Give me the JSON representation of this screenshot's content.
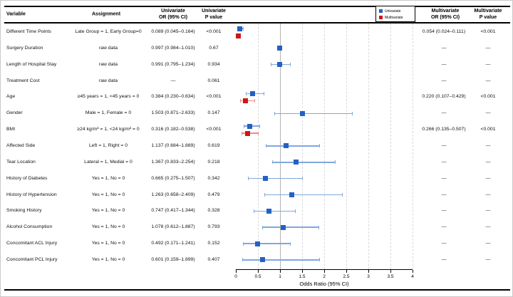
{
  "header": {
    "variable": "Variable",
    "assignment": "Assignment",
    "univariate_or": "Univariate\nOR (95% CI)",
    "univariate_p": "Univariate\nP value",
    "multivariate_or": "Multivariate\nOR (95% CI)",
    "multivariate_p": "Multivariate\nP value"
  },
  "legend": {
    "univariate_label": "Univariate",
    "multivariate_label": "Multivariate"
  },
  "colors": {
    "univariate_marker": "#2560c4",
    "univariate_bar": "#7fa8df",
    "multivariate_marker": "#cf1717",
    "multivariate_bar": "#e98c8c",
    "gridline": "#d9d9d9",
    "refline": "#b4b4b4"
  },
  "rows": [
    {
      "variable": "Different Time Points",
      "assignment": "Late Group = 1, Early Group=0",
      "uni_or": "0.089 (0.045–0.164)",
      "uni_p": "<0.001",
      "multi_or": "0.054 (0.024–0.111)",
      "multi_p": "<0.001"
    },
    {
      "variable": "Surgery Duration",
      "assignment": "raw data",
      "uni_or": "0.997 (0.984–1.010)",
      "uni_p": "0.67",
      "multi_or": "—",
      "multi_p": "—"
    },
    {
      "variable": "Length of Hospital Stay",
      "assignment": "raw data",
      "uni_or": "0.991 (0.795–1.234)",
      "uni_p": "0.934",
      "multi_or": "—",
      "multi_p": "—"
    },
    {
      "variable": "Treatment Cost",
      "assignment": "raw data",
      "uni_or": "—",
      "uni_p": "0.061",
      "multi_or": "—",
      "multi_p": "—"
    },
    {
      "variable": "Age",
      "assignment": "≥45 years = 1, <45 years = 0",
      "uni_or": "0.384 (0.230–0.634)",
      "uni_p": "<0.001",
      "multi_or": "0.220 (0.107–0.429)",
      "multi_p": "<0.001"
    },
    {
      "variable": "Gender",
      "assignment": "Male = 1, Female = 0",
      "uni_or": "1.503 (0.871–2.633)",
      "uni_p": "0.147",
      "multi_or": "—",
      "multi_p": "—"
    },
    {
      "variable": "BMI",
      "assignment": "≥24 kg/m² = 1, <24 kg/m² = 0",
      "uni_or": "0.316 (0.182–0.538)",
      "uni_p": "<0.001",
      "multi_or": "0.266 (0.135–0.507)",
      "multi_p": "<0.001"
    },
    {
      "variable": "Affected Side",
      "assignment": "Left = 1, Right = 0",
      "uni_or": "1.137 (0.684–1.889)",
      "uni_p": "0.619",
      "multi_or": "—",
      "multi_p": "—"
    },
    {
      "variable": "Tear Location",
      "assignment": "Lateral = 1, Medial = 0",
      "uni_or": "1.367 (0.833–2.254)",
      "uni_p": "0.218",
      "multi_or": "—",
      "multi_p": "—"
    },
    {
      "variable": "History of Diabetes",
      "assignment": "Yes = 1, No = 0",
      "uni_or": "0.665 (0.275–1.507)",
      "uni_p": "0.342",
      "multi_or": "—",
      "multi_p": "—"
    },
    {
      "variable": "History of Hypertension",
      "assignment": "Yes = 1, No = 0",
      "uni_or": "1.263 (0.658–2.409)",
      "uni_p": "0.479",
      "multi_or": "—",
      "multi_p": "—"
    },
    {
      "variable": "Smoking History",
      "assignment": "Yes = 1, No = 0",
      "uni_or": "0.747 (0.417–1.344)",
      "uni_p": "0.328",
      "multi_or": "—",
      "multi_p": "—"
    },
    {
      "variable": "Alcohol Consumption",
      "assignment": "Yes = 1, No = 0",
      "uni_or": "1.078 (0.612–1.887)",
      "uni_p": "0.793",
      "multi_or": "—",
      "multi_p": "—"
    },
    {
      "variable": "Concomitant ACL Injury",
      "assignment": "Yes = 1, No = 0",
      "uni_or": "0.492 (0.171–1.241)",
      "uni_p": "0.152",
      "multi_or": "—",
      "multi_p": "—"
    },
    {
      "variable": "Concomitant PCL Injury",
      "assignment": "Yes = 1, No = 0",
      "uni_or": "0.601 (0.159–1.899)",
      "uni_p": "0.407",
      "multi_or": "—",
      "multi_p": "—"
    }
  ],
  "chart_data": {
    "type": "scatter",
    "variant": "forest-plot",
    "xlabel": "Odds Ratio (95% CI)",
    "xlim": [
      0,
      4
    ],
    "x_ticks": [
      "0",
      "0.5",
      "1",
      "1.5",
      "2",
      "2.5",
      "3",
      "3.5",
      "4"
    ],
    "reference_line_x": 1,
    "grid": "vertical-dashed",
    "legend_position": "top-right",
    "series": [
      {
        "name": "Univariate",
        "points": [
          {
            "row": 0,
            "label": "Different Time Points",
            "or": 0.089,
            "lo": 0.045,
            "hi": 0.164
          },
          {
            "row": 1,
            "label": "Surgery Duration",
            "or": 0.997,
            "lo": 0.984,
            "hi": 1.01
          },
          {
            "row": 2,
            "label": "Length of Hospital Stay",
            "or": 0.991,
            "lo": 0.795,
            "hi": 1.234
          },
          {
            "row": 4,
            "label": "Age",
            "or": 0.384,
            "lo": 0.23,
            "hi": 0.634
          },
          {
            "row": 5,
            "label": "Gender",
            "or": 1.503,
            "lo": 0.871,
            "hi": 2.633
          },
          {
            "row": 6,
            "label": "BMI",
            "or": 0.316,
            "lo": 0.182,
            "hi": 0.538
          },
          {
            "row": 7,
            "label": "Affected Side",
            "or": 1.137,
            "lo": 0.684,
            "hi": 1.889
          },
          {
            "row": 8,
            "label": "Tear Location",
            "or": 1.367,
            "lo": 0.833,
            "hi": 2.254
          },
          {
            "row": 9,
            "label": "History of Diabetes",
            "or": 0.665,
            "lo": 0.275,
            "hi": 1.507
          },
          {
            "row": 10,
            "label": "History of Hypertension",
            "or": 1.263,
            "lo": 0.658,
            "hi": 2.409
          },
          {
            "row": 11,
            "label": "Smoking History",
            "or": 0.747,
            "lo": 0.417,
            "hi": 1.344
          },
          {
            "row": 12,
            "label": "Alcohol Consumption",
            "or": 1.078,
            "lo": 0.612,
            "hi": 1.887
          },
          {
            "row": 13,
            "label": "Concomitant ACL Injury",
            "or": 0.492,
            "lo": 0.171,
            "hi": 1.241
          },
          {
            "row": 14,
            "label": "Concomitant PCL Injury",
            "or": 0.601,
            "lo": 0.159,
            "hi": 1.899
          }
        ]
      },
      {
        "name": "Multivariate",
        "points": [
          {
            "row": 0,
            "label": "Different Time Points",
            "or": 0.054,
            "lo": 0.024,
            "hi": 0.111
          },
          {
            "row": 4,
            "label": "Age",
            "or": 0.22,
            "lo": 0.107,
            "hi": 0.429
          },
          {
            "row": 6,
            "label": "BMI",
            "or": 0.266,
            "lo": 0.135,
            "hi": 0.507
          }
        ]
      }
    ]
  }
}
